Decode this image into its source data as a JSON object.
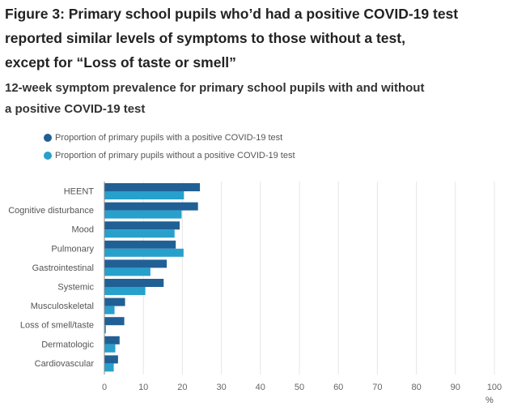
{
  "header": {
    "title_lines": [
      "Figure 3: Primary school pupils who’d had a positive COVID-19 test",
      "reported similar levels of symptoms to those without a test,",
      "except for “Loss of taste or smell”"
    ],
    "subtitle_lines": [
      "12-week symptom prevalence for primary school pupils with and without",
      "a positive COVID-19 test"
    ]
  },
  "chart_data": {
    "type": "bar",
    "orientation": "horizontal",
    "categories": [
      "HEENT",
      "Cognitive disturbance",
      "Mood",
      "Pulmonary",
      "Gastrointestinal",
      "Systemic",
      "Musculoskeletal",
      "Loss of smell/taste",
      "Dermatologic",
      "Cardiovascular"
    ],
    "series": [
      {
        "name": "Proportion of primary pupils with a positive COVID-19 test",
        "color": "#206095",
        "values": [
          24.5,
          24.0,
          19.3,
          18.3,
          16.0,
          15.2,
          5.3,
          5.1,
          3.9,
          3.5
        ]
      },
      {
        "name": "Proportion of primary pupils without a positive COVID-19 test",
        "color": "#27a0cc",
        "values": [
          20.4,
          19.8,
          18.0,
          20.3,
          11.8,
          10.5,
          2.6,
          0.4,
          2.8,
          2.4
        ]
      }
    ],
    "xlim": [
      0,
      100
    ],
    "xticks": [
      0,
      10,
      20,
      30,
      40,
      50,
      60,
      70,
      80,
      90,
      100
    ],
    "xunit": "%",
    "legend_position": "top-left",
    "grid": true
  }
}
